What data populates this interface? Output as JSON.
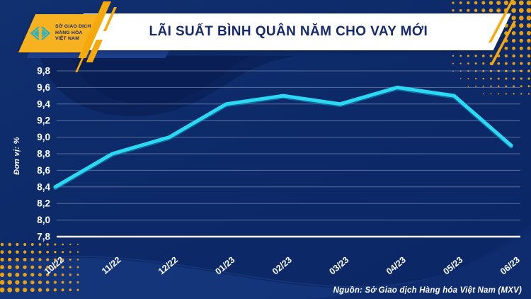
{
  "header": {
    "title": "LÃI SUẤT BÌNH QUÂN NĂM CHO VAY MỚI",
    "logo": {
      "org_line1": "SỞ GIAO DỊCH",
      "org_line2": "HÀNG HÓA",
      "org_line3": "VIỆT NAM"
    }
  },
  "chart_data": {
    "type": "line",
    "title": "LÃI SUẤT BÌNH QUÂN NĂM CHO VAY MỚI",
    "ylabel": "Đơn vị: %",
    "xlabel": "",
    "categories": [
      "10/22",
      "11/22",
      "12/22",
      "01/23",
      "02/23",
      "03/23",
      "04/23",
      "05/23",
      "06/23"
    ],
    "values": [
      8.4,
      8.8,
      9.0,
      9.4,
      9.5,
      9.4,
      9.6,
      9.5,
      8.9
    ],
    "ylim": [
      7.8,
      9.8
    ],
    "ytick_labels": [
      "9,8",
      "9,6",
      "9,4",
      "9,2",
      "9,0",
      "8,8",
      "8,6",
      "8,4",
      "8,2",
      "8,0",
      "7,8"
    ],
    "grid": true,
    "legend_position": "none"
  },
  "footer": {
    "source": "Nguồn: Sở Giao dịch Hàng hóa Việt Nam (MXV)"
  },
  "colors": {
    "background": "#0D2A69",
    "wave_dark": "#0A2158",
    "wave_light": "#16377E",
    "accent_yellow": "#F6A90A",
    "logo_yellow": "#F6B221",
    "logo_teal": "#28B0C6",
    "title_navy": "#16296B",
    "line_cyan": "#2BD9F2",
    "gridline": "#C3D0EC",
    "axis_text": "#FFFFFF"
  }
}
